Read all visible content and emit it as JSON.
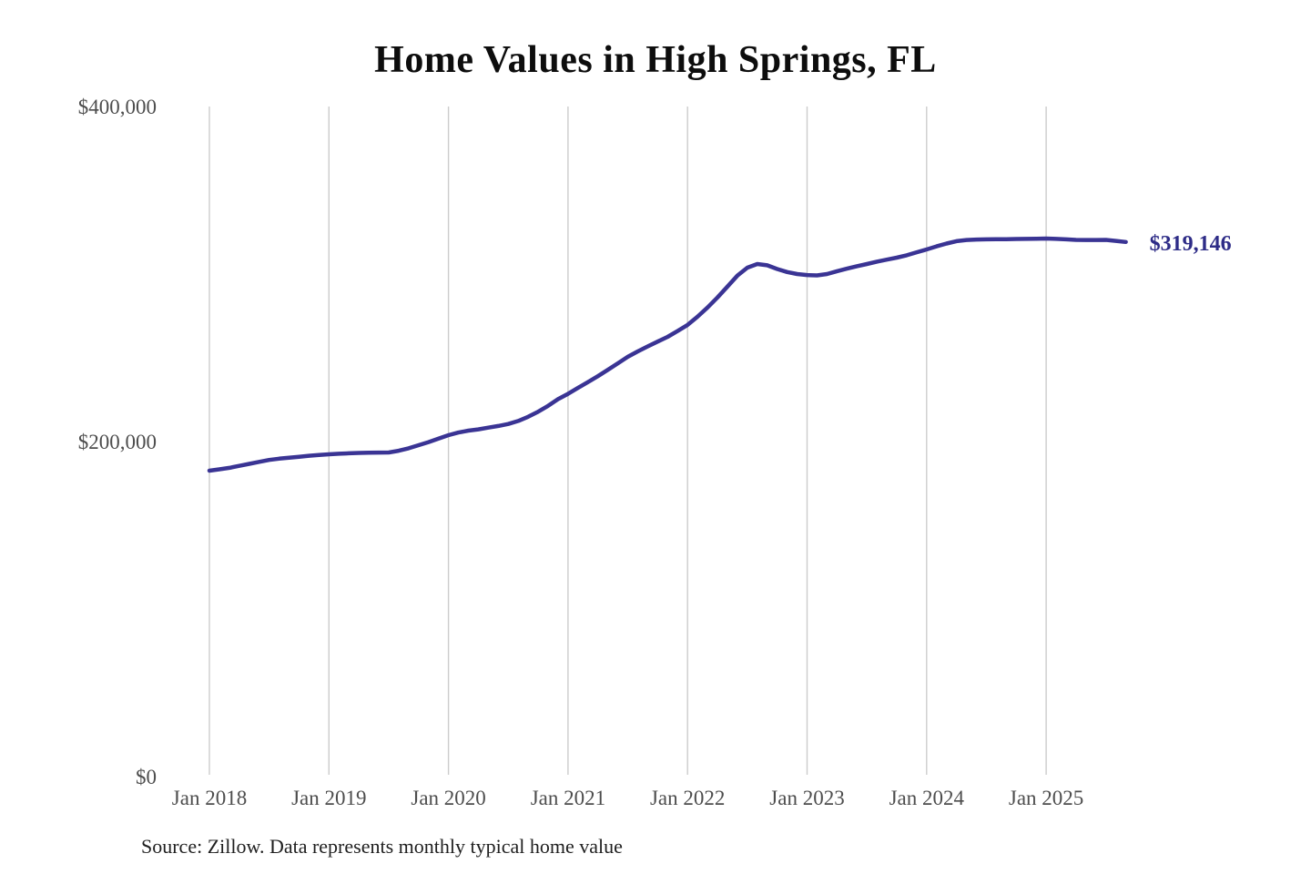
{
  "page": {
    "title": "Home Values in High Springs, FL",
    "source_note": "Source: Zillow. Data represents monthly typical home value"
  },
  "colors": {
    "line": "#3a3494",
    "end_label": "#2e2c87",
    "grid": "#cccccc",
    "axis_text": "#4d4d4d",
    "title_text": "#0d0d0d",
    "source_text": "#1f1f1f",
    "background": "#ffffff"
  },
  "chart_data": {
    "type": "line",
    "title": "Home Values in High Springs, FL",
    "xlabel": "",
    "ylabel": "",
    "ylim": [
      0,
      400000
    ],
    "grid": "vertical-only",
    "legend": "none",
    "x_tick_labels": [
      "Jan 2018",
      "Jan 2019",
      "Jan 2020",
      "Jan 2021",
      "Jan 2022",
      "Jan 2023",
      "Jan 2024",
      "Jan 2025"
    ],
    "y_ticks": [
      {
        "value": 0,
        "label": "$0"
      },
      {
        "value": 200000,
        "label": "$200,000"
      },
      {
        "value": 400000,
        "label": "$400,000"
      }
    ],
    "annotation": {
      "text": "$319,146",
      "value": 319146
    },
    "series": [
      {
        "name": "Monthly typical home value",
        "start_month": "Jan 2018",
        "end_month": "Sep 2025",
        "frequency": "monthly",
        "values": [
          182600,
          183400,
          184300,
          185500,
          186700,
          187900,
          189000,
          189800,
          190400,
          190900,
          191500,
          192000,
          192400,
          192700,
          193000,
          193200,
          193300,
          193400,
          193500,
          194500,
          196000,
          197800,
          199700,
          201800,
          203800,
          205400,
          206500,
          207300,
          208300,
          209300,
          210500,
          212300,
          214800,
          217800,
          221300,
          225300,
          228500,
          232000,
          235500,
          239000,
          242800,
          246700,
          250600,
          253800,
          256800,
          259700,
          262500,
          266000,
          269600,
          274500,
          280000,
          286000,
          292500,
          299000,
          303800,
          306000,
          305200,
          303000,
          301200,
          300000,
          299400,
          299200,
          300000,
          301700,
          303200,
          304700,
          306000,
          307400,
          308600,
          309800,
          311200,
          313000,
          314700,
          316500,
          318200,
          319600,
          320300,
          320600,
          320700,
          320800,
          320800,
          320900,
          321000,
          321100,
          321200,
          321000,
          320700,
          320400,
          320300,
          320300,
          320400,
          319800,
          319146
        ]
      }
    ]
  }
}
